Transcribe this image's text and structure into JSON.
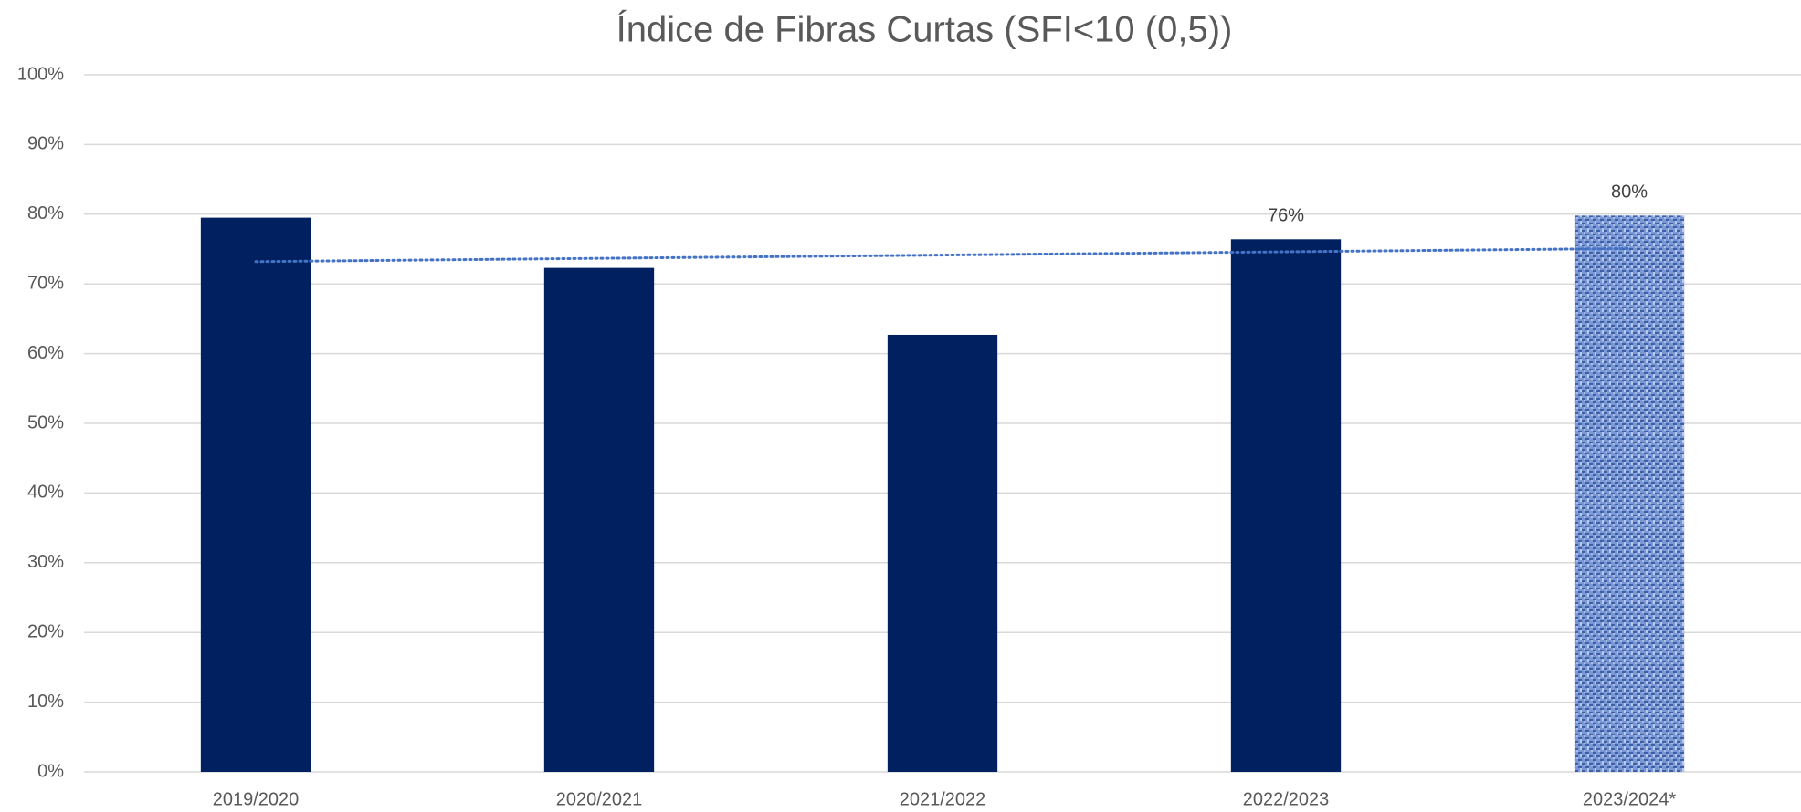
{
  "chart_data": {
    "type": "bar",
    "title": "Índice de Fibras Curtas (SFI<10 (0,5))",
    "categories": [
      "2019/2020",
      "2020/2021",
      "2021/2022",
      "2022/2023",
      "2023/2024*"
    ],
    "values": [
      79.5,
      72.3,
      62.7,
      76.4,
      79.8
    ],
    "value_labels": [
      null,
      null,
      null,
      "76%",
      "80%"
    ],
    "colors": [
      "#002060",
      "#002060",
      "#002060",
      "#002060",
      "#6f8fd0"
    ],
    "ylim": [
      0,
      100
    ],
    "yticks": [
      {
        "value": 0,
        "label": "0%"
      },
      {
        "value": 10,
        "label": "10%"
      },
      {
        "value": 20,
        "label": "20%"
      },
      {
        "value": 30,
        "label": "30%"
      },
      {
        "value": 40,
        "label": "40%"
      },
      {
        "value": 50,
        "label": "50%"
      },
      {
        "value": 60,
        "label": "60%"
      },
      {
        "value": 70,
        "label": "70%"
      },
      {
        "value": 80,
        "label": "80%"
      },
      {
        "value": 90,
        "label": "90%"
      },
      {
        "value": 100,
        "label": "100%"
      }
    ],
    "grid": true,
    "trendline": "linear",
    "trendline_color": "#4472c4"
  }
}
